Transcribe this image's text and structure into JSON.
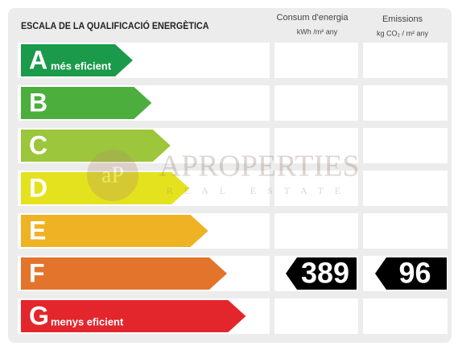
{
  "header": {
    "title": "ESCALA DE LA QUALIFICACIÓ ENERGÈTICA",
    "consum": {
      "label": "Consum d'energia",
      "unit": "kWh /m² any"
    },
    "emissions": {
      "label": "Emissions",
      "unit": "kg CO₂ / m² any"
    }
  },
  "rows": [
    {
      "letter": "A",
      "note": "més eficient",
      "color": "#1b9a4b"
    },
    {
      "letter": "B",
      "color": "#4bae3d"
    },
    {
      "letter": "C",
      "color": "#9cc63b"
    },
    {
      "letter": "D",
      "color": "#e4e21e"
    },
    {
      "letter": "E",
      "color": "#efb224"
    },
    {
      "letter": "F",
      "color": "#e2742b",
      "consum": 389,
      "emissions": 96
    },
    {
      "letter": "G",
      "note": "menys eficient",
      "color": "#e3262c"
    }
  ],
  "watermark": {
    "logo": "aP",
    "name": "APROPERTIES",
    "tagline": "REAL ESTATE"
  }
}
